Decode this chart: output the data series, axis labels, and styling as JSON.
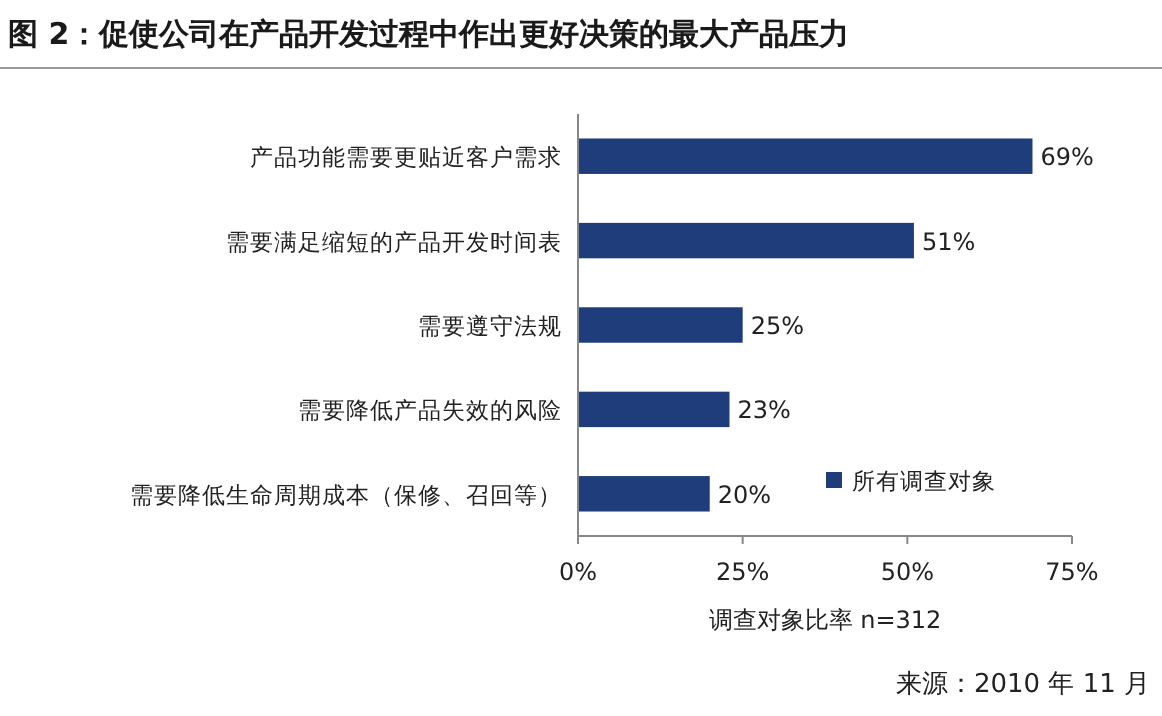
{
  "chart_data": {
    "type": "bar",
    "orientation": "horizontal",
    "title": "图 2：促使公司在产品开发过程中作出更好决策的最大产品压力",
    "categories": [
      "产品功能需要更贴近客户需求",
      "需要满足缩短的产品开发时间表",
      "需要遵守法规",
      "需要降低产品失效的风险",
      "需要降低生命周期成本（保修、召回等）"
    ],
    "series": [
      {
        "name": "所有调查对象",
        "color": "#1f3d7a",
        "values": [
          69,
          51,
          25,
          23,
          20
        ],
        "value_labels": [
          "69%",
          "51%",
          "25%",
          "23%",
          "20%"
        ]
      }
    ],
    "xlim": [
      0,
      75
    ],
    "xticks": [
      {
        "value": 0,
        "label": "0%"
      },
      {
        "value": 25,
        "label": "25%"
      },
      {
        "value": 50,
        "label": "50%"
      },
      {
        "value": 75,
        "label": "75%"
      }
    ],
    "xlabel": "调查对象比率 n=312",
    "legend": "bottom right",
    "grid": false,
    "annotations": [
      "来源：2010 年 11 月"
    ]
  }
}
